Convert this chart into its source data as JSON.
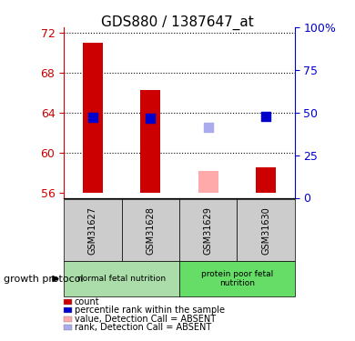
{
  "title": "GDS880 / 1387647_at",
  "samples": [
    "GSM31627",
    "GSM31628",
    "GSM31629",
    "GSM31630"
  ],
  "ylim_left": [
    55.5,
    72.5
  ],
  "ylim_right": [
    0,
    100
  ],
  "yticks_left": [
    56,
    60,
    64,
    68,
    72
  ],
  "yticks_right": [
    0,
    25,
    50,
    75,
    100
  ],
  "bar_bottom": 56,
  "red_bars": {
    "GSM31627": 71.0,
    "GSM31628": 66.2,
    "GSM31629": null,
    "GSM31630": 58.5
  },
  "pink_bars": {
    "GSM31629": 58.2
  },
  "blue_squares": {
    "GSM31627": 63.5,
    "GSM31628": 63.4,
    "GSM31629": null,
    "GSM31630": 63.6
  },
  "light_blue_squares": {
    "GSM31629": 62.5
  },
  "groups": [
    {
      "label": "normal fetal nutrition",
      "samples": [
        "GSM31627",
        "GSM31628"
      ],
      "color": "#aaddaa"
    },
    {
      "label": "protein poor fetal\nnutrition",
      "samples": [
        "GSM31629",
        "GSM31630"
      ],
      "color": "#66dd66"
    }
  ],
  "group_protocol_label": "growth protocol",
  "left_axis_color": "#cc0000",
  "right_axis_color": "#0000cc",
  "bar_color_red": "#cc0000",
  "bar_color_pink": "#ffaaaa",
  "square_color_blue": "#0000cc",
  "square_color_lightblue": "#aaaaee",
  "sample_bg_color": "#cccccc",
  "legend_items": [
    {
      "label": "count",
      "color": "#cc0000"
    },
    {
      "label": "percentile rank within the sample",
      "color": "#0000cc"
    },
    {
      "label": "value, Detection Call = ABSENT",
      "color": "#ffaaaa"
    },
    {
      "label": "rank, Detection Call = ABSENT",
      "color": "#aaaaee"
    }
  ],
  "bar_width": 0.35,
  "dot_size": 60
}
